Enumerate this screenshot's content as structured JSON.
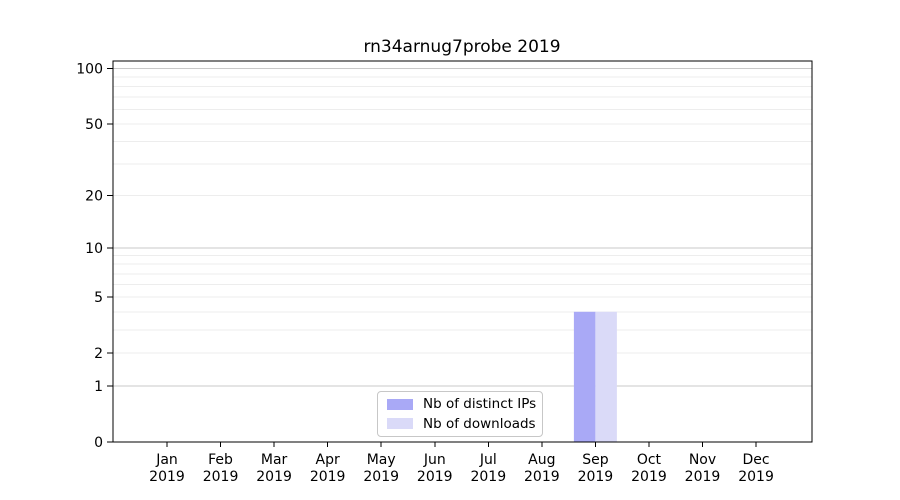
{
  "chart_data": {
    "type": "bar",
    "title": "rn34arnug7probe 2019",
    "categories": [
      "Jan 2019",
      "Feb 2019",
      "Mar 2019",
      "Apr 2019",
      "May 2019",
      "Jun 2019",
      "Jul 2019",
      "Aug 2019",
      "Sep 2019",
      "Oct 2019",
      "Nov 2019",
      "Dec 2019"
    ],
    "series": [
      {
        "name": "Nb of distinct IPs",
        "color": "#a9a9f6",
        "values": [
          0,
          0,
          0,
          0,
          0,
          0,
          0,
          0,
          4,
          0,
          0,
          0
        ]
      },
      {
        "name": "Nb of downloads",
        "color": "#dadaf8",
        "values": [
          0,
          0,
          0,
          0,
          0,
          0,
          0,
          0,
          4,
          0,
          0,
          0
        ]
      }
    ],
    "xlabel": "",
    "ylabel": "",
    "yscale": "log1p",
    "ylim": [
      0,
      110
    ],
    "y_tick_labels": [
      "0",
      "1",
      "2",
      "5",
      "10",
      "20",
      "50",
      "100"
    ],
    "y_tick_values": [
      0,
      1,
      2,
      5,
      10,
      20,
      50,
      100
    ],
    "y_minor_gridlines": [
      2,
      3,
      4,
      5,
      6,
      7,
      8,
      9,
      20,
      30,
      40,
      50,
      60,
      70,
      80,
      90
    ],
    "y_major_gridlines": [
      1,
      10,
      100
    ],
    "grid": true,
    "legend_position": "lower center",
    "colors": {
      "grid_minor": "#ededed",
      "grid_major": "#c9c9c9",
      "axis": "#000000",
      "legend_border": "#c7c7c7",
      "background": "#ffffff"
    }
  }
}
